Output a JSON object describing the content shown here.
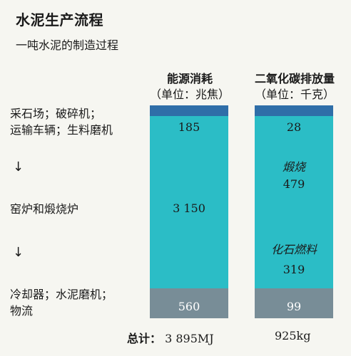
{
  "title": "水泥生产流程",
  "subtitle": "一吨水泥的制造过程",
  "columns": [
    {
      "header": "能源消耗",
      "unit": "（单位：兆焦）",
      "total": "3 895MJ"
    },
    {
      "header": "二氧化碳排放量",
      "unit": "（单位：千克）",
      "total": "925kg"
    }
  ],
  "stages": [
    {
      "line1": "采石场；破碎机；",
      "line2": "运输车辆；生料磨机"
    },
    {
      "line1": "窑炉和煅烧炉",
      "line2": ""
    },
    {
      "line1": "冷却器；水泥磨机；",
      "line2": "物流"
    }
  ],
  "arrow_glyph": "↓",
  "total_label": "总计：",
  "colors": {
    "cap": "#2f6ea8",
    "main": "#2bbdc6",
    "bottom": "#788d97",
    "label_light": "#ffffff",
    "label_dark": "#1a1a1a"
  },
  "chart_data": {
    "type": "bar",
    "stacked": true,
    "categories": [
      "能源消耗",
      "二氧化碳排放量"
    ],
    "segments": [
      {
        "stage": "采石场；破碎机；运输车辆；生料磨机",
        "labels": [
          "185",
          "28"
        ],
        "values": [
          185,
          28
        ]
      },
      {
        "stage": "窑炉和煅烧炉",
        "labels": [
          "3 150",
          ""
        ],
        "values": [
          3150,
          null
        ]
      },
      {
        "stage": "冷却器；水泥磨机；物流",
        "labels": [
          "560",
          "99"
        ],
        "values": [
          560,
          99
        ]
      }
    ],
    "co2_kiln_split": [
      {
        "name": "煅烧",
        "value": 479
      },
      {
        "name": "化石燃料",
        "value": 319
      }
    ],
    "totals": [
      "3 895MJ",
      "925kg"
    ]
  }
}
